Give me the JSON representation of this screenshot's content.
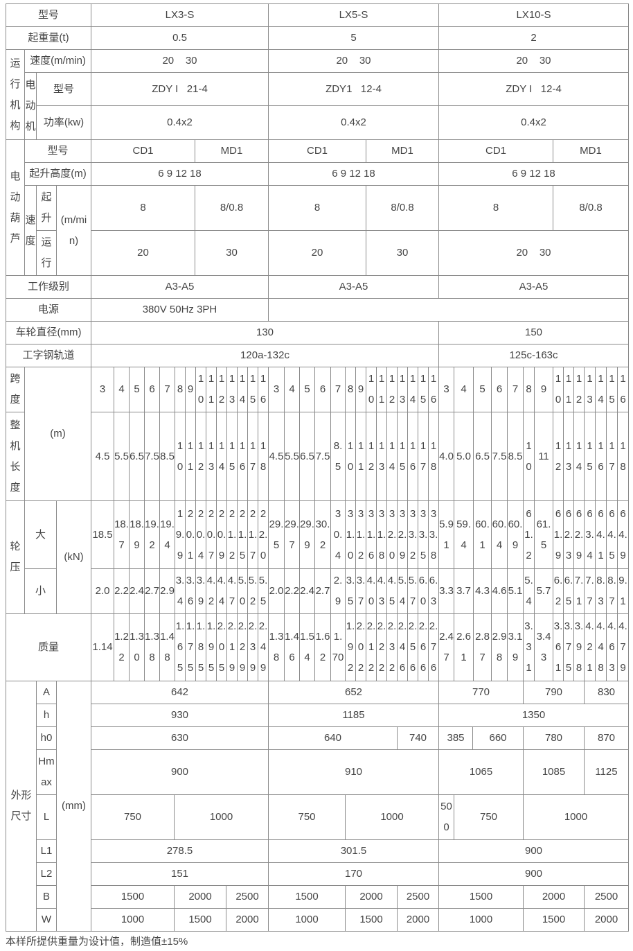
{
  "header": {
    "label": "型号",
    "models": [
      "LX3-S",
      "LX5-S",
      "LX10-S"
    ]
  },
  "capacity": {
    "label": "起重量(t)",
    "values": [
      "0.5",
      "5",
      "2"
    ]
  },
  "travel": {
    "group_label": "运行机构",
    "speed_label": "速度(m/min)",
    "speed": [
      "20    30",
      "20    30",
      "20    30"
    ],
    "motor_label": "电动机",
    "model_label": "型号",
    "models": [
      "ZDY I   21-4",
      "ZDY1   12-4",
      "ZDY I   12-4"
    ],
    "power_label": "功率(kw)",
    "power": [
      "0.4x2",
      "0.4x2",
      "0.4x2"
    ]
  },
  "hoist": {
    "group_label": "电动葫芦",
    "model_label": "型号",
    "models": [
      [
        "CD1",
        "MD1"
      ],
      [
        "CD1",
        "MD1"
      ],
      [
        "CD1",
        "MD1"
      ]
    ],
    "height_label": "起升高度(m)",
    "heights": [
      "6 9 12 18",
      "6 9 12 18",
      "6 9 12 18"
    ],
    "speed_label": "速度",
    "lift_label": "起升",
    "run_label": "运行",
    "unit": "(m/min)",
    "lift": [
      [
        "8",
        "8/0.8"
      ],
      [
        "8",
        "8/0.8"
      ],
      [
        "8",
        "8/0.8"
      ]
    ],
    "run": [
      [
        "20",
        "30"
      ],
      [
        "20",
        "30"
      ],
      [
        "20    30"
      ]
    ]
  },
  "duty": {
    "label": "工作级别",
    "values": [
      "A3-A5",
      "A3-A5",
      "A3-A5"
    ]
  },
  "power_supply": {
    "label": "电源",
    "value": "380V 50Hz 3PH"
  },
  "wheel": {
    "label": "车轮直径(mm)",
    "values": [
      "130",
      "150"
    ]
  },
  "rail": {
    "label": "工字钢轨道",
    "values": [
      "120a-132c",
      "125c-163c"
    ]
  },
  "span": {
    "span_label": "跨度",
    "length_label": "整机长度",
    "unit": "(m)",
    "spans": [
      [
        "3",
        "4",
        "5",
        "6",
        "7",
        "8",
        "9",
        "10",
        "11",
        "12",
        "13",
        "14",
        "15",
        "16"
      ],
      [
        "3",
        "4",
        "5",
        "6",
        "7",
        "8",
        "9",
        "10",
        "11",
        "12",
        "13",
        "14",
        "15",
        "16"
      ],
      [
        "3",
        "4",
        "5",
        "6",
        "7",
        "8",
        "9",
        "10",
        "11",
        "12",
        "13",
        "14",
        "15",
        "16"
      ]
    ],
    "lengths": [
      [
        "4.5",
        "5.5",
        "6.5",
        "7.5",
        "8.5",
        "10",
        "11",
        "12",
        "13",
        "14",
        "15",
        "16",
        "17",
        "18"
      ],
      [
        "4.5",
        "5.5",
        "6.5",
        "7.5",
        "8.5",
        "10",
        "11",
        "12",
        "13",
        "14",
        "15",
        "16",
        "17",
        "18"
      ],
      [
        "4.0",
        "5.0",
        "6.5",
        "7.5",
        "8.5",
        "10",
        "11",
        "12",
        "13",
        "14",
        "15",
        "16",
        "17",
        "18"
      ]
    ]
  },
  "wheel_load": {
    "label": "轮压",
    "big_label": "大",
    "small_label": "小",
    "unit": "(kN)",
    "big": [
      [
        "18.5",
        "18.7",
        "18.9",
        "19.2",
        "19.4",
        "19.9",
        "20.1",
        "20.4",
        "20.7",
        "20.9",
        "21.2",
        "21.5",
        "21.7",
        "22.0"
      ],
      [
        "29.5",
        "29.7",
        "29.9",
        "30.2",
        "30.4",
        "31.0",
        "31.2",
        "31.6",
        "31.8",
        "32.0",
        "32.9",
        "33.2",
        "33.5",
        "33.8"
      ],
      [
        "5.91",
        "59.4",
        "60.1",
        "60.4",
        "60.9",
        "61.2",
        "61.5",
        "61.9",
        "62.3",
        "62.9",
        "63.4",
        "64.1",
        "64.5",
        "64.9"
      ]
    ],
    "small": [
      [
        "2.0",
        "2.2",
        "2.4",
        "2.7",
        "2.9",
        "3.4",
        "3.6",
        "3.9",
        "4.2",
        "4.4",
        "4.7",
        "5.0",
        "5.2",
        "5.5"
      ],
      [
        "2.0",
        "2.2",
        "2.4",
        "2.7",
        "2.9",
        "3.5",
        "3.7",
        "4.0",
        "4.3",
        "4.5",
        "5.4",
        "5.7",
        "6.0",
        "6.3"
      ],
      [
        "3.3",
        "3.7",
        "4.3",
        "4.6",
        "5.1",
        "5.4",
        "5.7",
        "6.2",
        "6.5",
        "7.1",
        "7.7",
        "8.3",
        "8.7",
        "9.1"
      ]
    ]
  },
  "mass": {
    "label": "质量",
    "values": [
      [
        "1.14",
        "1.22",
        "1.30",
        "1.38",
        "1.48",
        "1.65",
        "1.75",
        "1.85",
        "1.95",
        "2.05",
        "2.19",
        "2.29",
        "2.39",
        "2.49"
      ],
      [
        "1.38",
        "1.46",
        "1.54",
        "1.62",
        "1.70",
        "1.92",
        "2.02",
        "2.12",
        "2.22",
        "2.32",
        "2.46",
        "2.56",
        "2.66",
        "2.76"
      ],
      [
        "2.47",
        "2.61",
        "2.87",
        "2.98",
        "3.19",
        "3.31",
        "3.43",
        "3.61",
        "3.75",
        "3.98",
        "4.21",
        "4.48",
        "4.63",
        "4.79"
      ]
    ]
  },
  "dims": {
    "label": "外形尺寸",
    "unit": "(mm)",
    "rows": [
      {
        "label": "A",
        "values": [
          "642",
          "652",
          "770",
          "790",
          "830"
        ]
      },
      {
        "label": "h",
        "values": [
          "930",
          "1185",
          "1350"
        ]
      },
      {
        "label": "h0",
        "values": [
          "630",
          "640",
          "740",
          "385",
          "660",
          "780",
          "870"
        ]
      },
      {
        "label": "Hmax",
        "values": [
          "900",
          "910",
          "1065",
          "1085",
          "1125"
        ]
      },
      {
        "label": "L",
        "values": [
          "750",
          "1000",
          "750",
          "1000",
          "500",
          "750",
          "1000"
        ]
      },
      {
        "label": "L1",
        "values": [
          "278.5",
          "301.5",
          "900"
        ]
      },
      {
        "label": "L2",
        "values": [
          "151",
          "170",
          "900"
        ]
      },
      {
        "label": "B",
        "values": [
          "1500",
          "2000",
          "2500",
          "1500",
          "2000",
          "2500",
          "1500",
          "2000",
          "2500"
        ]
      },
      {
        "label": "W",
        "values": [
          "1000",
          "1500",
          "2000",
          "1000",
          "1500",
          "2000",
          "1000",
          "1500",
          "2000"
        ]
      }
    ]
  },
  "footnote": "本样所提供重量为设计值，制造值±15%"
}
